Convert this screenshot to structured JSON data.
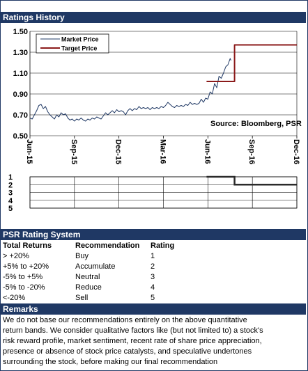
{
  "header": {
    "title": "Ratings History"
  },
  "chart_data": {
    "type": "line",
    "ylim": [
      0.5,
      1.5
    ],
    "yticks": [
      "1.50",
      "1.30",
      "1.10",
      "0.90",
      "0.70",
      "0.50"
    ],
    "xticks": [
      "Jun-15",
      "Sep-15",
      "Dec-15",
      "Mar-16",
      "Jun-16",
      "Sep-16",
      "Dec-16"
    ],
    "legend_placement": "top-left",
    "annotation": "Source: Bloomberg, PSR",
    "series": [
      {
        "name": "Market Price",
        "color": "#1f3864",
        "points": [
          [
            0.0,
            0.67
          ],
          [
            0.05,
            0.66
          ],
          [
            0.1,
            0.7
          ],
          [
            0.15,
            0.74
          ],
          [
            0.2,
            0.79
          ],
          [
            0.25,
            0.8
          ],
          [
            0.3,
            0.76
          ],
          [
            0.35,
            0.78
          ],
          [
            0.4,
            0.73
          ],
          [
            0.45,
            0.7
          ],
          [
            0.5,
            0.68
          ],
          [
            0.55,
            0.66
          ],
          [
            0.6,
            0.7
          ],
          [
            0.65,
            0.68
          ],
          [
            0.7,
            0.72
          ],
          [
            0.75,
            0.7
          ],
          [
            0.8,
            0.71
          ],
          [
            0.85,
            0.67
          ],
          [
            0.9,
            0.65
          ],
          [
            0.95,
            0.66
          ],
          [
            1.0,
            0.64
          ],
          [
            1.05,
            0.66
          ],
          [
            1.1,
            0.65
          ],
          [
            1.15,
            0.67
          ],
          [
            1.2,
            0.65
          ],
          [
            1.25,
            0.64
          ],
          [
            1.3,
            0.66
          ],
          [
            1.35,
            0.65
          ],
          [
            1.4,
            0.67
          ],
          [
            1.45,
            0.66
          ],
          [
            1.5,
            0.68
          ],
          [
            1.55,
            0.67
          ],
          [
            1.6,
            0.66
          ],
          [
            1.65,
            0.69
          ],
          [
            1.7,
            0.72
          ],
          [
            1.75,
            0.7
          ],
          [
            1.8,
            0.72
          ],
          [
            1.85,
            0.74
          ],
          [
            1.9,
            0.72
          ],
          [
            1.95,
            0.75
          ],
          [
            2.0,
            0.73
          ],
          [
            2.05,
            0.74
          ],
          [
            2.1,
            0.73
          ],
          [
            2.15,
            0.7
          ],
          [
            2.2,
            0.74
          ],
          [
            2.25,
            0.76
          ],
          [
            2.3,
            0.74
          ],
          [
            2.35,
            0.76
          ],
          [
            2.4,
            0.75
          ],
          [
            2.45,
            0.78
          ],
          [
            2.5,
            0.76
          ],
          [
            2.55,
            0.77
          ],
          [
            2.6,
            0.76
          ],
          [
            2.65,
            0.77
          ],
          [
            2.7,
            0.75
          ],
          [
            2.75,
            0.77
          ],
          [
            2.8,
            0.76
          ],
          [
            2.85,
            0.77
          ],
          [
            2.9,
            0.76
          ],
          [
            2.95,
            0.78
          ],
          [
            3.0,
            0.77
          ],
          [
            3.05,
            0.79
          ],
          [
            3.1,
            0.82
          ],
          [
            3.15,
            0.8
          ],
          [
            3.2,
            0.78
          ],
          [
            3.25,
            0.77
          ],
          [
            3.3,
            0.79
          ],
          [
            3.35,
            0.78
          ],
          [
            3.4,
            0.79
          ],
          [
            3.45,
            0.78
          ],
          [
            3.5,
            0.8
          ],
          [
            3.55,
            0.79
          ],
          [
            3.6,
            0.82
          ],
          [
            3.65,
            0.8
          ],
          [
            3.7,
            0.81
          ],
          [
            3.75,
            0.8
          ],
          [
            3.8,
            0.81
          ],
          [
            3.85,
            0.85
          ],
          [
            3.9,
            0.82
          ],
          [
            3.95,
            0.86
          ],
          [
            4.0,
            0.85
          ],
          [
            4.05,
            0.92
          ],
          [
            4.1,
            0.9
          ],
          [
            4.15,
            1.0
          ],
          [
            4.2,
            0.96
          ],
          [
            4.25,
            1.07
          ],
          [
            4.3,
            1.05
          ],
          [
            4.35,
            1.1
          ],
          [
            4.4,
            1.16
          ],
          [
            4.45,
            1.18
          ],
          [
            4.5,
            1.24
          ],
          [
            4.52,
            1.22
          ]
        ]
      },
      {
        "name": "Target Price",
        "color": "#8b1a1a",
        "points": [
          [
            3.97,
            1.02
          ],
          [
            4.6,
            1.02
          ],
          [
            4.6,
            1.37
          ],
          [
            6.0,
            1.37
          ]
        ]
      }
    ],
    "rating_chart": {
      "yticks": [
        "1",
        "2",
        "3",
        "4",
        "5"
      ],
      "ylim": [
        1,
        5
      ],
      "series": [
        {
          "color": "#2a2a2a",
          "points": [
            [
              3.97,
              1
            ],
            [
              4.6,
              1
            ],
            [
              4.6,
              2
            ],
            [
              6.0,
              2
            ]
          ]
        }
      ]
    }
  },
  "rating_system": {
    "title": "PSR Rating System",
    "headers": [
      "Total Returns",
      "Recommendation",
      "Rating"
    ],
    "rows": [
      [
        "> +20%",
        "Buy",
        "1"
      ],
      [
        "+5% to +20%",
        "Accumulate",
        "2"
      ],
      [
        "-5% to +5%",
        "Neutral",
        "3"
      ],
      [
        "-5% to -20%",
        "Reduce",
        "4"
      ],
      [
        "<-20%",
        "Sell",
        "5"
      ]
    ]
  },
  "remarks": {
    "title": "Remarks",
    "lines": [
      "We do not base our recommendations entirely on the  above quantitative",
      "return bands.  We consider qualitative factors like (but not limited to) a stock's",
      "risk reward profile, market sentiment, recent rate of share price appreciation,",
      "presence or absence of stock price catalysts, and speculative undertones",
      "surrounding the stock, before making our final recommendation"
    ]
  }
}
